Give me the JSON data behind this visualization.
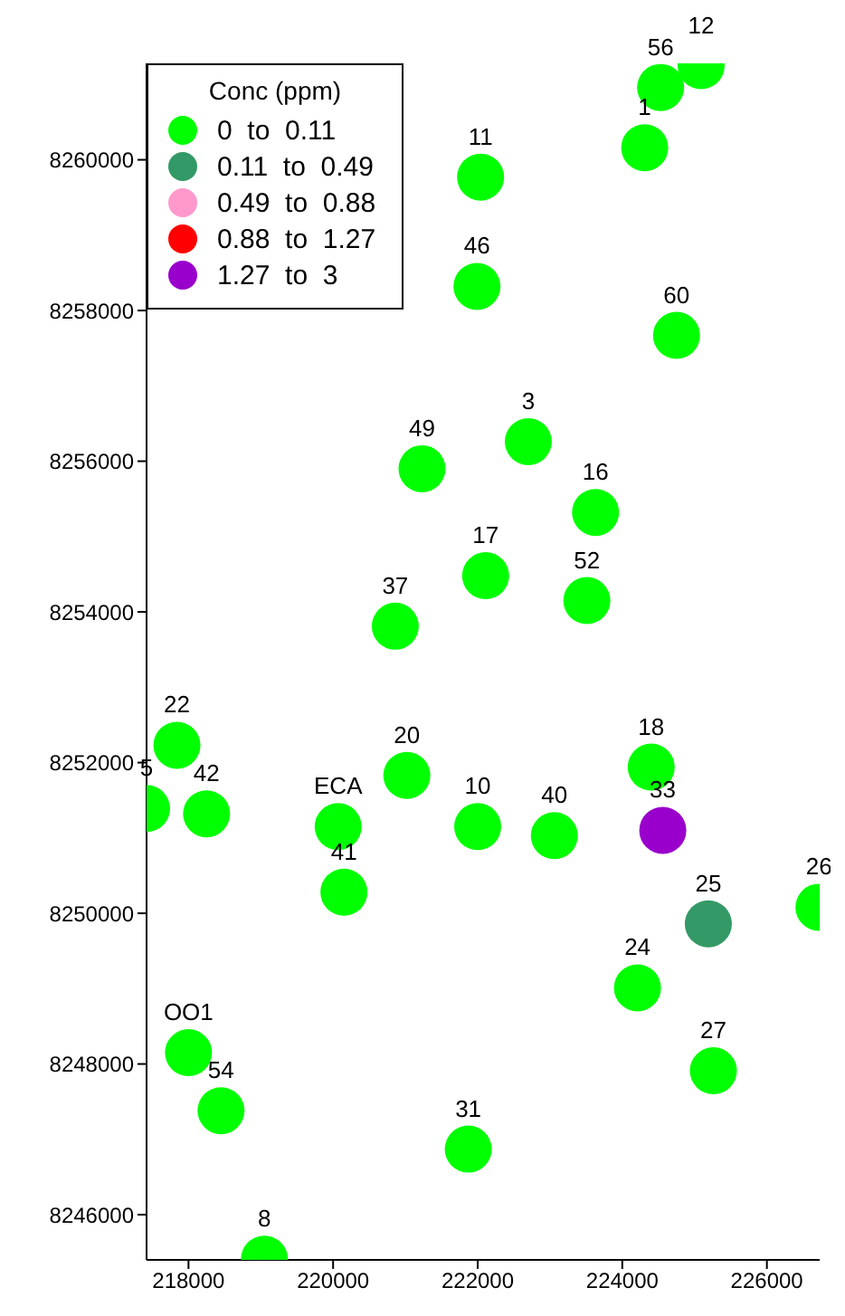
{
  "chart_data": {
    "type": "scatter",
    "legend_title": "Conc (ppm)",
    "legend": "top left",
    "marker": "circle",
    "grid": false,
    "xlim": [
      217420,
      226730
    ],
    "xticks": [
      218000,
      220000,
      222000,
      224000,
      226000
    ],
    "ylim": [
      8245400,
      8261280
    ],
    "yticks": [
      8246000,
      8248000,
      8250000,
      8252000,
      8254000,
      8256000,
      8258000,
      8260000
    ],
    "series": [
      {
        "name": "0  to  0.11",
        "color": "#00ff00",
        "x": [
          225090,
          224530,
          224310,
          222040,
          221990,
          224750,
          222700,
          221230,
          223630,
          222110,
          223510,
          220860,
          217840,
          217420,
          218250,
          220070,
          221020,
          222000,
          223060,
          224400,
          220150,
          226720,
          224210,
          218000,
          218450,
          225260,
          221870,
          219050
        ],
        "values": [
          8261250,
          8260960,
          8260160,
          8259770,
          8258320,
          8257670,
          8256260,
          8255900,
          8255320,
          8254480,
          8254150,
          8253810,
          8252230,
          8251390,
          8251320,
          8251150,
          8251830,
          8251150,
          8251030,
          8251940,
          8250280,
          8250080,
          8249010,
          8248150,
          8247380,
          8247910,
          8246870,
          8245410
        ]
      },
      {
        "name": "0.11  to  0.49",
        "color": "#339966",
        "x": [
          225190
        ],
        "values": [
          8249860
        ]
      },
      {
        "name": "0.49  to  0.88",
        "color": "#ff99cc"
      },
      {
        "name": "0.88  to  1.27",
        "color": "#ff0000"
      },
      {
        "name": "1.27  to  3",
        "color": "#9900cc",
        "x": [
          224560
        ],
        "values": [
          8251100
        ]
      }
    ],
    "annotations": [
      {
        "text": "12",
        "x": 225090,
        "y": 8261250
      },
      {
        "text": "56",
        "x": 224530,
        "y": 8260960
      },
      {
        "text": "1",
        "x": 224310,
        "y": 8260160
      },
      {
        "text": "11",
        "x": 222040,
        "y": 8259770
      },
      {
        "text": "46",
        "x": 221990,
        "y": 8258320
      },
      {
        "text": "60",
        "x": 224750,
        "y": 8257670
      },
      {
        "text": "3",
        "x": 222700,
        "y": 8256260
      },
      {
        "text": "49",
        "x": 221230,
        "y": 8255900
      },
      {
        "text": "16",
        "x": 223630,
        "y": 8255320
      },
      {
        "text": "17",
        "x": 222110,
        "y": 8254480
      },
      {
        "text": "52",
        "x": 223510,
        "y": 8254150
      },
      {
        "text": "37",
        "x": 220860,
        "y": 8253810
      },
      {
        "text": "22",
        "x": 217840,
        "y": 8252230
      },
      {
        "text": "5",
        "x": 217420,
        "y": 8251390
      },
      {
        "text": "42",
        "x": 218250,
        "y": 8251320
      },
      {
        "text": "ECA",
        "x": 220070,
        "y": 8251150
      },
      {
        "text": "20",
        "x": 221020,
        "y": 8251830
      },
      {
        "text": "10",
        "x": 222000,
        "y": 8251150
      },
      {
        "text": "40",
        "x": 223060,
        "y": 8251030
      },
      {
        "text": "18",
        "x": 224400,
        "y": 8251940
      },
      {
        "text": "41",
        "x": 220150,
        "y": 8250280
      },
      {
        "text": "26",
        "x": 226720,
        "y": 8250080
      },
      {
        "text": "24",
        "x": 224210,
        "y": 8249010
      },
      {
        "text": "OO1",
        "x": 218000,
        "y": 8248150
      },
      {
        "text": "54",
        "x": 218450,
        "y": 8247380
      },
      {
        "text": "27",
        "x": 225260,
        "y": 8247910
      },
      {
        "text": "31",
        "x": 221870,
        "y": 8246870
      },
      {
        "text": "8",
        "x": 219050,
        "y": 8245410
      },
      {
        "text": "25",
        "x": 225190,
        "y": 8249860
      },
      {
        "text": "33",
        "x": 224560,
        "y": 8251100
      }
    ]
  }
}
